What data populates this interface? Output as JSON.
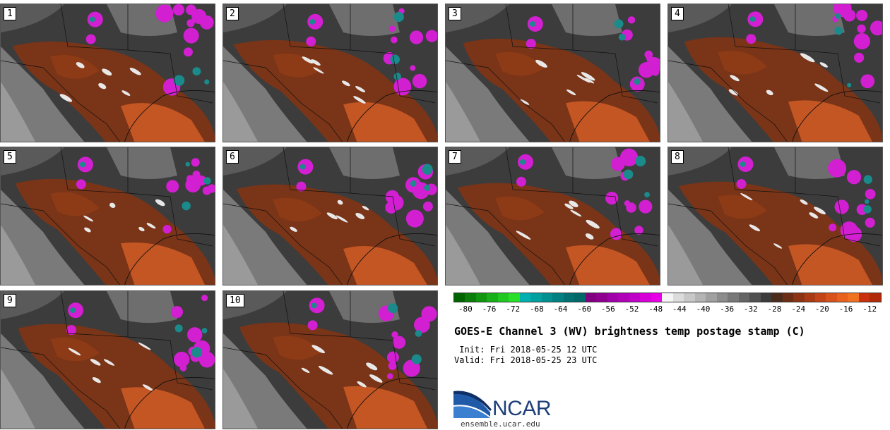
{
  "panels": [
    {
      "label": "1"
    },
    {
      "label": "2"
    },
    {
      "label": "3"
    },
    {
      "label": "4"
    },
    {
      "label": "5"
    },
    {
      "label": "6"
    },
    {
      "label": "7"
    },
    {
      "label": "8"
    },
    {
      "label": "9"
    },
    {
      "label": "10"
    }
  ],
  "colorbar": {
    "colors": [
      "#006400",
      "#0a7d0a",
      "#109610",
      "#18b018",
      "#20c820",
      "#28e028",
      "#00b0b0",
      "#00a0a0",
      "#009090",
      "#008080",
      "#007070",
      "#006868",
      "#800080",
      "#900090",
      "#a000a8",
      "#b000b8",
      "#c000c8",
      "#d800d8",
      "#e800e8",
      "#f5f5f5",
      "#dcdcdc",
      "#c8c8c8",
      "#b4b4b4",
      "#a0a0a0",
      "#8c8c8c",
      "#787878",
      "#646464",
      "#505050",
      "#3c3c3c",
      "#4a2b1c",
      "#6b2e14",
      "#8b3312",
      "#a83a14",
      "#c24418",
      "#d8531c",
      "#e8621e",
      "#f07220",
      "#c83010",
      "#b02a0a"
    ],
    "tick_labels": [
      "-80",
      "-76",
      "-72",
      "-68",
      "-64",
      "-60",
      "-56",
      "-52",
      "-48",
      "-44",
      "-40",
      "-36",
      "-32",
      "-28",
      "-24",
      "-20",
      "-16",
      "-12"
    ],
    "tick_values": [
      -80,
      -76,
      -72,
      -68,
      -64,
      -60,
      -56,
      -52,
      -48,
      -44,
      -40,
      -36,
      -32,
      -28,
      -24,
      -20,
      -16,
      -12
    ],
    "min": -82,
    "max": -10
  },
  "title": "GOES-E Channel 3 (WV) brightness temp postage stamp (C)",
  "init_line": " Init: Fri 2018-05-25 12 UTC",
  "valid_line": "Valid: Fri 2018-05-25 23 UTC",
  "logo_text": "NCAR",
  "site": "ensemble.ucar.edu"
}
